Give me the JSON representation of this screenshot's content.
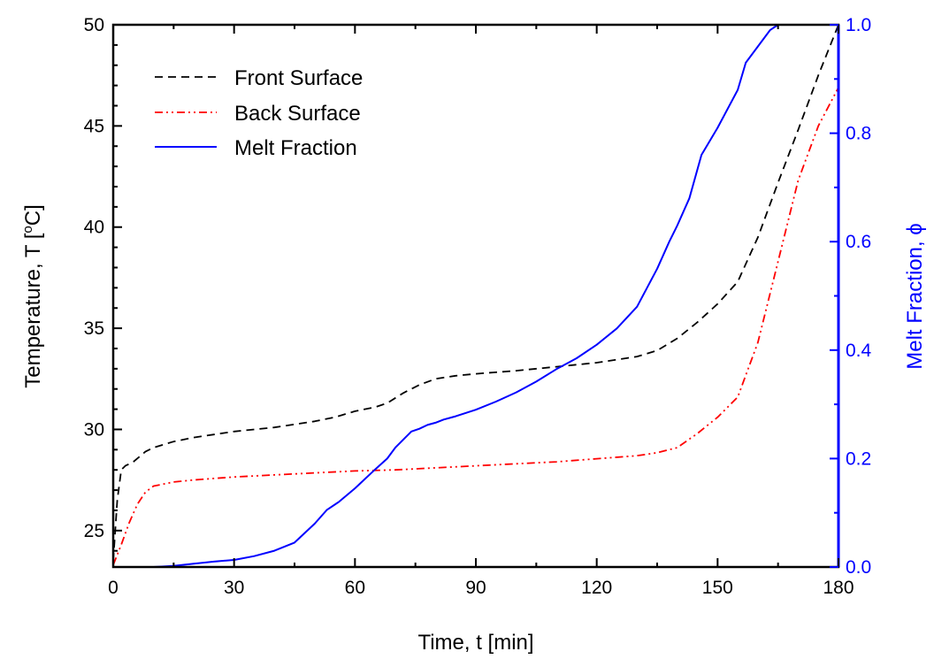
{
  "chart_data": {
    "type": "line",
    "xlabel": "Time, t [min]",
    "ylabel_left_prefix": "Temperature, T [",
    "ylabel_left_degree": "o",
    "ylabel_left_suffix": "C]",
    "ylabel_right": "Melt Fraction, ϕ",
    "xlim": [
      0,
      180
    ],
    "ylim_left": [
      23.2,
      50
    ],
    "ylim_right": [
      0,
      1
    ],
    "x_ticks": [
      0,
      30,
      60,
      90,
      120,
      150,
      180
    ],
    "x_tick_labels": [
      "0",
      "30",
      "60",
      "90",
      "120",
      "150",
      "180"
    ],
    "y_left_ticks": [
      25,
      30,
      35,
      40,
      45,
      50
    ],
    "y_left_tick_labels": [
      "25",
      "30",
      "35",
      "40",
      "45",
      "50"
    ],
    "y_right_ticks": [
      0,
      0.2,
      0.4,
      0.6,
      0.8,
      1.0
    ],
    "y_right_tick_labels": [
      "0.0",
      "0.2",
      "0.4",
      "0.6",
      "0.8",
      "1.0"
    ],
    "grid": false,
    "legend_position": "top-left",
    "colors": {
      "front": "#000000",
      "back": "#ff0000",
      "melt": "#0000ff",
      "right_axis": "#0000ff"
    },
    "series": [
      {
        "name": "Front Surface",
        "axis": "left",
        "style": "dashed",
        "x": [
          0,
          1,
          2,
          3,
          5,
          8,
          10,
          15,
          20,
          30,
          40,
          50,
          55,
          60,
          65,
          68,
          72,
          76,
          80,
          85,
          90,
          100,
          110,
          120,
          130,
          135,
          140,
          145,
          150,
          155,
          160,
          165,
          170,
          175,
          180
        ],
        "y": [
          23.5,
          26.5,
          28.0,
          28.2,
          28.4,
          28.9,
          29.1,
          29.4,
          29.6,
          29.9,
          30.1,
          30.4,
          30.6,
          30.9,
          31.1,
          31.3,
          31.8,
          32.2,
          32.5,
          32.65,
          32.75,
          32.9,
          33.1,
          33.3,
          33.6,
          33.9,
          34.5,
          35.3,
          36.2,
          37.3,
          39.5,
          42.2,
          44.8,
          47.5,
          50.0
        ]
      },
      {
        "name": "Back Surface",
        "axis": "left",
        "style": "dash-dot-dot",
        "x": [
          0,
          2,
          4,
          6,
          8,
          10,
          15,
          20,
          30,
          40,
          50,
          60,
          70,
          80,
          90,
          100,
          110,
          120,
          130,
          135,
          140,
          145,
          150,
          155,
          160,
          165,
          170,
          175,
          180
        ],
        "y": [
          23.3,
          24.3,
          25.4,
          26.3,
          26.9,
          27.2,
          27.4,
          27.5,
          27.65,
          27.75,
          27.85,
          27.95,
          28.0,
          28.1,
          28.2,
          28.3,
          28.4,
          28.55,
          28.7,
          28.85,
          29.1,
          29.8,
          30.6,
          31.6,
          34.3,
          38.3,
          42.3,
          45.0,
          46.9
        ]
      },
      {
        "name": "Melt Fraction",
        "axis": "right",
        "style": "solid",
        "x": [
          0,
          10,
          15,
          20,
          25,
          30,
          35,
          40,
          45,
          50,
          53,
          56,
          60,
          65,
          68,
          70,
          72,
          74,
          76,
          78,
          80,
          82,
          85,
          90,
          95,
          100,
          105,
          110,
          115,
          120,
          125,
          130,
          135,
          138,
          140,
          143,
          146,
          150,
          155,
          157,
          160,
          163,
          165
        ],
        "y": [
          0,
          0.0,
          0.002,
          0.006,
          0.01,
          0.013,
          0.02,
          0.03,
          0.045,
          0.08,
          0.105,
          0.12,
          0.145,
          0.18,
          0.2,
          0.22,
          0.235,
          0.25,
          0.255,
          0.262,
          0.266,
          0.272,
          0.278,
          0.29,
          0.305,
          0.322,
          0.342,
          0.365,
          0.385,
          0.41,
          0.44,
          0.48,
          0.55,
          0.6,
          0.63,
          0.68,
          0.76,
          0.81,
          0.88,
          0.93,
          0.96,
          0.99,
          1.0
        ]
      }
    ]
  }
}
